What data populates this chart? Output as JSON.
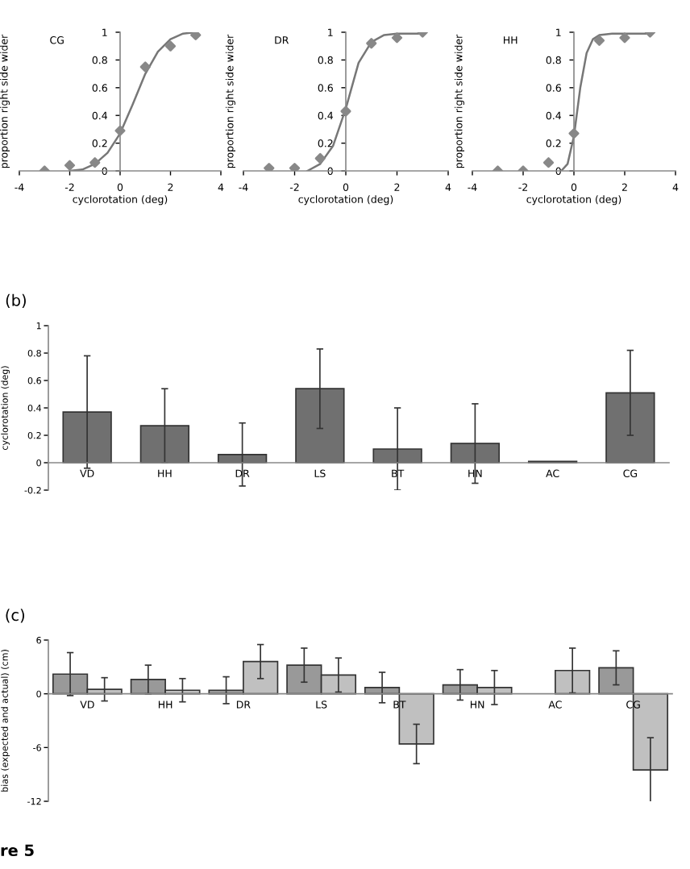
{
  "chart_data": [
    {
      "type": "scatter",
      "title": "CG",
      "xlabel": "cyclorotation (deg)",
      "ylabel": "proportion right side wider",
      "xlim": [
        -4,
        4
      ],
      "xticks": [
        -4,
        -2,
        0,
        2,
        4
      ],
      "ylim": [
        0,
        1
      ],
      "yticks": [
        0,
        0.2,
        0.4,
        0.6,
        0.8,
        1
      ],
      "grid": false,
      "legend": false,
      "series": [
        {
          "type": "scatter",
          "color": "#888888",
          "marker": "diamond",
          "x": [
            -3,
            -2,
            -1,
            0,
            1,
            2,
            3
          ],
          "values": [
            0,
            0.04,
            0.06,
            0.29,
            0.75,
            0.9,
            0.98
          ]
        },
        {
          "type": "line",
          "color": "#777777",
          "marker": "none",
          "x": [
            -2,
            -1.5,
            -1,
            -0.5,
            0,
            0.5,
            1,
            1.5,
            2,
            2.5,
            3
          ],
          "values": [
            0,
            0.01,
            0.05,
            0.13,
            0.27,
            0.48,
            0.7,
            0.86,
            0.95,
            0.99,
            1.0
          ]
        }
      ]
    },
    {
      "type": "scatter",
      "title": "DR",
      "xlabel": "cyclorotation (deg)",
      "ylabel": "proportion right side wider",
      "xlim": [
        -4,
        4
      ],
      "xticks": [
        -4,
        -2,
        0,
        2,
        4
      ],
      "ylim": [
        0,
        1
      ],
      "yticks": [
        0,
        0.2,
        0.4,
        0.6,
        0.8,
        1
      ],
      "grid": false,
      "legend": false,
      "series": [
        {
          "type": "scatter",
          "color": "#888888",
          "marker": "diamond",
          "x": [
            -3,
            -2,
            -1,
            0,
            1,
            2,
            3
          ],
          "values": [
            0.02,
            0.02,
            0.09,
            0.43,
            0.92,
            0.96,
            1.0
          ]
        },
        {
          "type": "line",
          "color": "#777777",
          "marker": "none",
          "x": [
            -1.5,
            -1,
            -0.5,
            0,
            0.5,
            1,
            1.5,
            2,
            3
          ],
          "values": [
            0,
            0.05,
            0.18,
            0.45,
            0.78,
            0.93,
            0.98,
            0.99,
            0.99
          ]
        }
      ]
    },
    {
      "type": "scatter",
      "title": "HH",
      "xlabel": "cyclorotation (deg)",
      "ylabel": "proportion right side wider",
      "xlim": [
        -4,
        4
      ],
      "xticks": [
        -4,
        -2,
        0,
        2,
        4
      ],
      "ylim": [
        0,
        1
      ],
      "yticks": [
        0,
        0.2,
        0.4,
        0.6,
        0.8,
        1
      ],
      "grid": false,
      "legend": false,
      "series": [
        {
          "type": "scatter",
          "color": "#888888",
          "marker": "diamond",
          "x": [
            -3,
            -2,
            -1,
            0,
            1,
            2,
            3
          ],
          "values": [
            0,
            0,
            0.06,
            0.27,
            0.94,
            0.96,
            1.0
          ]
        },
        {
          "type": "line",
          "color": "#777777",
          "marker": "none",
          "x": [
            -0.5,
            -0.25,
            0,
            0.25,
            0.5,
            0.75,
            1,
            1.5,
            3
          ],
          "values": [
            0,
            0.05,
            0.25,
            0.6,
            0.85,
            0.95,
            0.98,
            0.99,
            0.99
          ]
        }
      ]
    },
    {
      "type": "bar",
      "title": "(b)",
      "ylabel": "cyclorotation (deg)",
      "categories": [
        "VD",
        "HH",
        "DR",
        "LS",
        "BT",
        "HN",
        "AC",
        "CG"
      ],
      "ylim": [
        -0.2,
        1
      ],
      "yticks": [
        -0.2,
        0,
        0.2,
        0.4,
        0.6,
        0.8,
        1
      ],
      "grid": false,
      "legend": false,
      "series": [
        {
          "color": "#707070",
          "values": [
            0.37,
            0.27,
            0.06,
            0.54,
            0.1,
            0.14,
            0.01,
            0.51
          ],
          "errors": [
            0.41,
            0.27,
            0.23,
            0.29,
            0.3,
            0.29,
            null,
            0.31
          ]
        }
      ]
    },
    {
      "type": "bar",
      "title": "(c)",
      "ylabel": "bias (expected and actual) (cm)",
      "categories": [
        "VD",
        "HH",
        "DR",
        "LS",
        "BT",
        "HN",
        "AC",
        "CG"
      ],
      "ylim": [
        -12,
        6
      ],
      "yticks": [
        -12,
        -6,
        0,
        6
      ],
      "grid": false,
      "legend": false,
      "annotations": [
        "re 5"
      ],
      "series": [
        {
          "color": "#999999",
          "values": [
            2.2,
            1.6,
            0.4,
            3.2,
            0.7,
            1.0,
            null,
            2.9
          ],
          "errors": [
            2.4,
            1.6,
            1.5,
            1.9,
            1.7,
            1.7,
            null,
            1.9
          ]
        },
        {
          "color": "#c0c0c0",
          "values": [
            0.5,
            0.4,
            3.6,
            2.1,
            -5.6,
            0.7,
            2.6,
            -8.5
          ],
          "errors": [
            1.3,
            1.3,
            1.9,
            1.9,
            2.2,
            1.9,
            2.5,
            3.6
          ]
        }
      ]
    }
  ]
}
